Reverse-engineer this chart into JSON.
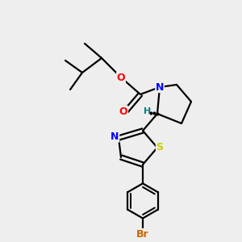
{
  "bg_color": "#eeeeee",
  "atom_colors": {
    "C": "#000000",
    "N": "#0000ff",
    "O": "#ff0000",
    "S": "#cccc00",
    "Br": "#cc6600",
    "H": "#008080"
  },
  "bond_color": "#000000",
  "line_width": 1.6,
  "font_size_atom": 9
}
